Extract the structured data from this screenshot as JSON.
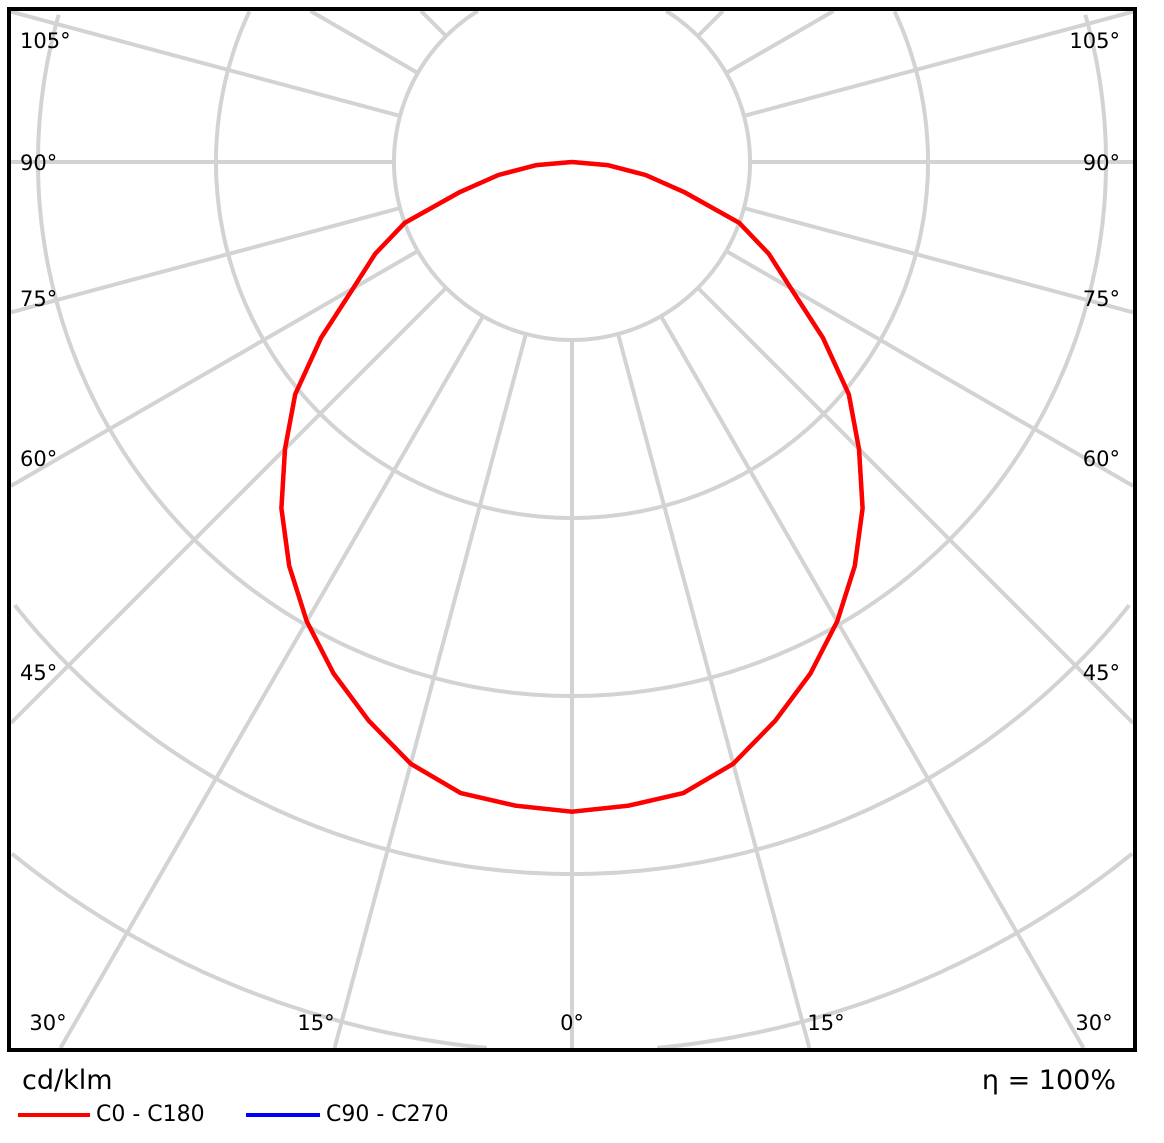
{
  "chart_data": {
    "type": "polar-line",
    "unit_label": "cd/klm",
    "efficiency_label": "η = 100%",
    "angle_labels_left": [
      "105°",
      "90°",
      "75°",
      "60°",
      "45°"
    ],
    "angle_labels_right": [
      "105°",
      "90°",
      "75°",
      "60°",
      "45°"
    ],
    "angle_labels_bottom": [
      "30°",
      "15°",
      "0°",
      "15°",
      "30°"
    ],
    "grid": true,
    "legend_placement": "bottom-left",
    "angles_deg": [
      0,
      5,
      10,
      15,
      20,
      25,
      30,
      35,
      40,
      45,
      50,
      55,
      60,
      65,
      70,
      75,
      80,
      85,
      90
    ],
    "series": [
      {
        "name": "C0 - C180",
        "color": "#ff0000",
        "values": [
          3.65,
          3.63,
          3.6,
          3.5,
          3.34,
          3.17,
          2.98,
          2.77,
          2.54,
          2.28,
          2.03,
          1.72,
          1.42,
          1.22,
          1.0,
          0.65,
          0.42,
          0.2,
          0
        ]
      },
      {
        "name": "C90 - C270",
        "color": "#0000ff",
        "values": [
          3.65,
          3.63,
          3.6,
          3.5,
          3.34,
          3.17,
          2.98,
          2.77,
          2.54,
          2.28,
          2.03,
          1.72,
          1.42,
          1.22,
          1.0,
          0.65,
          0.42,
          0.2,
          0
        ]
      }
    ],
    "grid_color": "#d3d3d3"
  }
}
